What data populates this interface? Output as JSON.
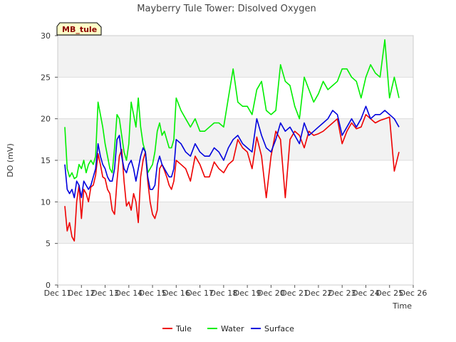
{
  "chart_data": {
    "type": "line",
    "title": "Mayberry Tule Tower: Disolved Oxygen",
    "xlabel": "Time",
    "ylabel": "DO (mV)",
    "badge": "MB_tule",
    "ylim": [
      0,
      30
    ],
    "xlim": [
      11,
      26
    ],
    "yticks": [
      "0",
      "5",
      "10",
      "15",
      "20",
      "25",
      "30"
    ],
    "xticks": [
      "Dec 11",
      "Dec 12",
      "Dec 13",
      "Dec 14",
      "Dec 15",
      "Dec 16",
      "Dec 17",
      "Dec 18",
      "Dec 19",
      "Dec 20",
      "Dec 21",
      "Dec 22",
      "Dec 23",
      "Dec 24",
      "Dec 25",
      "Dec 26"
    ],
    "grid": true,
    "legend_position": "bottom",
    "series": [
      {
        "name": "Tule",
        "color": "#ee0000",
        "x": [
          11.3,
          11.4,
          11.5,
          11.6,
          11.7,
          11.8,
          11.9,
          12.0,
          12.1,
          12.2,
          12.3,
          12.4,
          12.5,
          12.6,
          12.7,
          12.8,
          12.9,
          13.0,
          13.1,
          13.2,
          13.3,
          13.4,
          13.5,
          13.6,
          13.7,
          13.8,
          13.9,
          14.0,
          14.1,
          14.2,
          14.3,
          14.4,
          14.5,
          14.6,
          14.7,
          14.8,
          14.9,
          15.0,
          15.1,
          15.2,
          15.3,
          15.4,
          15.5,
          15.6,
          15.7,
          15.8,
          15.9,
          16.0,
          16.2,
          16.4,
          16.6,
          16.8,
          17.0,
          17.2,
          17.4,
          17.6,
          17.8,
          18.0,
          18.2,
          18.4,
          18.6,
          18.8,
          19.0,
          19.2,
          19.4,
          19.6,
          19.8,
          20.0,
          20.2,
          20.4,
          20.6,
          20.8,
          21.0,
          21.2,
          21.4,
          21.6,
          21.8,
          22.0,
          22.2,
          22.4,
          22.6,
          22.8,
          23.0,
          23.2,
          23.4,
          23.6,
          23.8,
          24.0,
          24.2,
          24.4,
          24.6,
          24.8,
          25.0,
          25.2,
          25.4
        ],
        "y": [
          9.5,
          6.5,
          7.5,
          5.8,
          5.3,
          10.0,
          12.0,
          8.0,
          11.5,
          11.0,
          10.0,
          11.8,
          12.0,
          13.2,
          15.8,
          14.5,
          13.0,
          12.8,
          11.5,
          11.0,
          9.0,
          8.5,
          12.5,
          15.5,
          16.3,
          12.5,
          9.5,
          10.0,
          9.0,
          11.0,
          10.0,
          7.5,
          13.0,
          15.0,
          16.0,
          12.5,
          10.0,
          8.5,
          8.0,
          9.0,
          14.0,
          14.5,
          13.8,
          13.0,
          12.0,
          11.5,
          12.5,
          15.0,
          14.5,
          14.0,
          12.5,
          15.5,
          14.5,
          13.0,
          13.0,
          14.8,
          14.0,
          13.5,
          14.5,
          15.0,
          17.5,
          16.5,
          16.0,
          14.0,
          17.8,
          15.5,
          10.5,
          15.5,
          18.5,
          17.5,
          10.5,
          17.5,
          18.5,
          18.0,
          16.5,
          18.5,
          18.0,
          18.2,
          18.5,
          19.0,
          19.5,
          20.0,
          17.0,
          18.5,
          19.5,
          18.8,
          19.0,
          20.5,
          20.0,
          19.5,
          19.8,
          20.0,
          20.2,
          13.7,
          16.0
        ]
      },
      {
        "name": "Water",
        "color": "#00ee00",
        "x": [
          11.3,
          11.4,
          11.5,
          11.6,
          11.7,
          11.8,
          11.9,
          12.0,
          12.1,
          12.2,
          12.3,
          12.4,
          12.5,
          12.6,
          12.7,
          12.8,
          12.9,
          13.0,
          13.1,
          13.2,
          13.3,
          13.4,
          13.5,
          13.6,
          13.7,
          13.8,
          13.9,
          14.0,
          14.1,
          14.2,
          14.3,
          14.4,
          14.5,
          14.6,
          14.7,
          14.8,
          14.9,
          15.0,
          15.1,
          15.2,
          15.3,
          15.4,
          15.5,
          15.6,
          15.7,
          15.8,
          15.9,
          16.0,
          16.2,
          16.4,
          16.6,
          16.8,
          17.0,
          17.2,
          17.4,
          17.6,
          17.8,
          18.0,
          18.2,
          18.4,
          18.6,
          18.8,
          19.0,
          19.2,
          19.4,
          19.6,
          19.8,
          20.0,
          20.2,
          20.4,
          20.6,
          20.8,
          21.0,
          21.2,
          21.4,
          21.6,
          21.8,
          22.0,
          22.2,
          22.4,
          22.6,
          22.8,
          23.0,
          23.2,
          23.4,
          23.6,
          23.8,
          24.0,
          24.2,
          24.4,
          24.6,
          24.8,
          25.0,
          25.2,
          25.4
        ],
        "y": [
          19.0,
          14.0,
          13.0,
          13.5,
          12.8,
          13.0,
          14.5,
          14.0,
          15.0,
          13.5,
          14.5,
          15.0,
          14.5,
          15.5,
          22.0,
          20.5,
          19.0,
          17.0,
          15.5,
          14.0,
          13.5,
          16.5,
          20.5,
          20.0,
          18.0,
          16.0,
          15.0,
          17.0,
          22.0,
          20.5,
          19.0,
          22.5,
          19.0,
          17.0,
          16.0,
          13.5,
          14.0,
          14.5,
          16.0,
          18.5,
          19.5,
          18.0,
          18.5,
          17.5,
          16.5,
          16.5,
          17.5,
          22.5,
          21.0,
          20.0,
          19.0,
          20.0,
          18.5,
          18.5,
          19.0,
          19.5,
          19.5,
          19.0,
          22.5,
          26.0,
          22.0,
          21.5,
          21.5,
          20.5,
          23.5,
          24.5,
          21.0,
          20.5,
          21.0,
          26.5,
          24.5,
          24.0,
          21.5,
          20.0,
          25.0,
          23.5,
          22.0,
          23.0,
          24.5,
          23.5,
          24.0,
          24.5,
          26.0,
          26.0,
          25.0,
          24.5,
          22.5,
          25.0,
          26.5,
          25.5,
          25.0,
          29.5,
          22.5,
          25.0,
          22.5
        ]
      },
      {
        "name": "Surface",
        "color": "#0000dd",
        "x": [
          11.3,
          11.4,
          11.5,
          11.6,
          11.7,
          11.8,
          11.9,
          12.0,
          12.1,
          12.2,
          12.3,
          12.4,
          12.5,
          12.6,
          12.7,
          12.8,
          12.9,
          13.0,
          13.1,
          13.2,
          13.3,
          13.4,
          13.5,
          13.6,
          13.7,
          13.8,
          13.9,
          14.0,
          14.1,
          14.2,
          14.3,
          14.4,
          14.5,
          14.6,
          14.7,
          14.8,
          14.9,
          15.0,
          15.1,
          15.2,
          15.3,
          15.4,
          15.5,
          15.6,
          15.7,
          15.8,
          15.9,
          16.0,
          16.2,
          16.4,
          16.6,
          16.8,
          17.0,
          17.2,
          17.4,
          17.6,
          17.8,
          18.0,
          18.2,
          18.4,
          18.6,
          18.8,
          19.0,
          19.2,
          19.4,
          19.6,
          19.8,
          20.0,
          20.2,
          20.4,
          20.6,
          20.8,
          21.0,
          21.2,
          21.4,
          21.6,
          21.8,
          22.0,
          22.2,
          22.4,
          22.6,
          22.8,
          23.0,
          23.2,
          23.4,
          23.6,
          23.8,
          24.0,
          24.2,
          24.4,
          24.6,
          24.8,
          25.0,
          25.2,
          25.4
        ],
        "y": [
          14.5,
          11.5,
          11.0,
          11.5,
          10.5,
          12.5,
          12.0,
          10.5,
          12.5,
          12.0,
          11.5,
          12.0,
          13.0,
          14.0,
          17.0,
          15.5,
          14.5,
          14.0,
          13.0,
          12.5,
          12.5,
          14.0,
          17.5,
          18.0,
          15.5,
          14.0,
          13.5,
          14.5,
          15.0,
          14.0,
          12.5,
          14.0,
          15.5,
          16.5,
          16.0,
          13.0,
          11.5,
          11.5,
          12.0,
          14.5,
          15.5,
          14.5,
          14.0,
          13.5,
          13.0,
          13.0,
          14.0,
          17.5,
          17.0,
          16.0,
          15.5,
          17.0,
          16.0,
          15.5,
          15.5,
          16.5,
          16.0,
          15.0,
          16.5,
          17.5,
          18.0,
          17.0,
          16.5,
          16.0,
          20.0,
          18.0,
          16.5,
          16.0,
          17.5,
          19.5,
          18.5,
          19.0,
          18.0,
          17.0,
          19.5,
          18.0,
          18.5,
          19.0,
          19.5,
          20.0,
          21.0,
          20.5,
          18.0,
          19.0,
          20.0,
          19.0,
          20.0,
          21.5,
          20.0,
          20.5,
          20.5,
          21.0,
          20.5,
          20.0,
          19.0
        ]
      }
    ]
  }
}
